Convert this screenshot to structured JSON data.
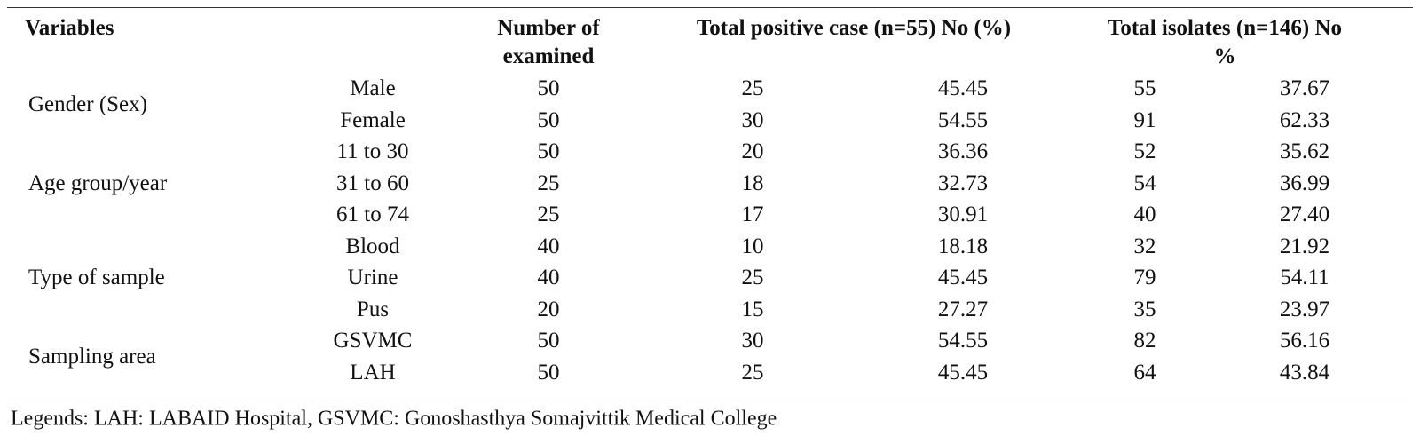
{
  "table": {
    "header": {
      "variables": "Variables",
      "examined": [
        "Number of",
        "examined"
      ],
      "positive": "Total positive case (n=55) No (%)",
      "isolates": [
        "Total  isolates (n=146) No",
        "%"
      ]
    },
    "groups": [
      {
        "label": "Gender (Sex)",
        "rows": [
          [
            "Male",
            "50",
            "25",
            "45.45",
            "55",
            "37.67"
          ],
          [
            "Female",
            "50",
            "30",
            "54.55",
            "91",
            "62.33"
          ]
        ]
      },
      {
        "label": "Age group/year",
        "rows": [
          [
            "11 to 30",
            "50",
            "20",
            "36.36",
            "52",
            "35.62"
          ],
          [
            "31 to 60",
            "25",
            "18",
            "32.73",
            "54",
            "36.99"
          ],
          [
            "61 to 74",
            "25",
            "17",
            "30.91",
            "40",
            "27.40"
          ]
        ]
      },
      {
        "label": "Type of sample",
        "rows": [
          [
            "Blood",
            "40",
            "10",
            "18.18",
            "32",
            "21.92"
          ],
          [
            "Urine",
            "40",
            "25",
            "45.45",
            "79",
            "54.11"
          ],
          [
            "Pus",
            "20",
            "15",
            "27.27",
            "35",
            "23.97"
          ]
        ]
      },
      {
        "label": "Sampling area",
        "rows": [
          [
            "GSVMC",
            "50",
            "30",
            "54.55",
            "82",
            "56.16"
          ],
          [
            "LAH",
            "50",
            "25",
            "45.45",
            "64",
            "43.84"
          ]
        ]
      }
    ]
  },
  "legend": "Legends: LAH: LABAID Hospital, GSVMC: Gonoshasthya Somajvittik Medical College"
}
